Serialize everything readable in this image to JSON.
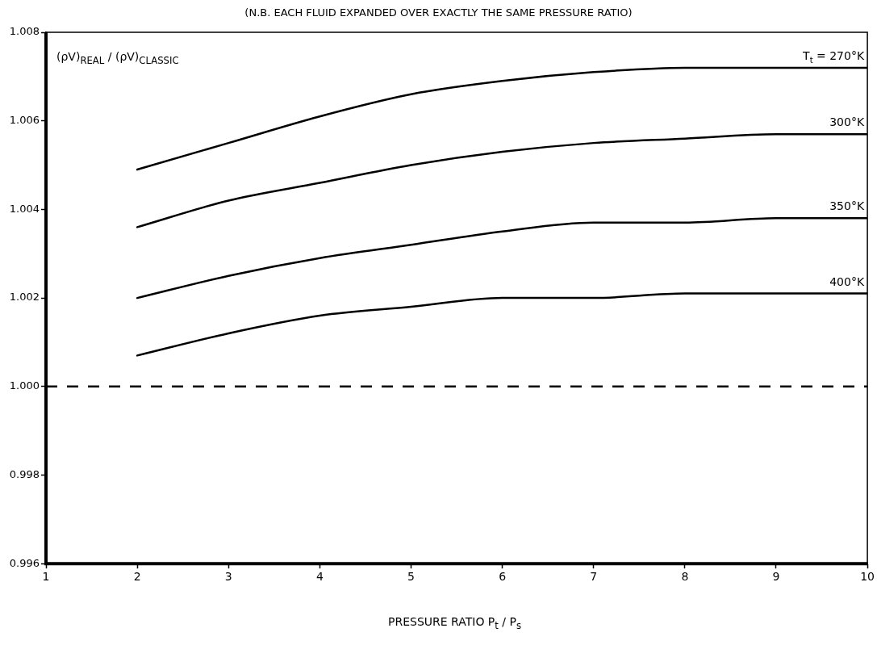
{
  "chart_data": {
    "type": "line",
    "title": "(N.B. EACH FLUID EXPANDED OVER EXACTLY THE SAME PRESSURE RATIO)",
    "xlabel": "PRESSURE RATIO  P$_{t}$ / P$_{s}$",
    "ylabel": "(ρV)$_{REAL}$ / (ρV)$_{CLASSIC}$",
    "x": [
      2,
      3,
      4,
      5,
      6,
      7,
      8,
      9,
      10
    ],
    "series": [
      {
        "name": "T$_{t}$ = 270°K",
        "color": "#000000",
        "values": [
          1.0049,
          1.0055,
          1.0061,
          1.0066,
          1.0069,
          1.0071,
          1.0072,
          1.0072,
          1.0072
        ]
      },
      {
        "name": "300°K",
        "color": "#000000",
        "values": [
          1.0036,
          1.0042,
          1.0046,
          1.005,
          1.0053,
          1.0055,
          1.0056,
          1.0057,
          1.0057
        ]
      },
      {
        "name": "350°K",
        "color": "#000000",
        "values": [
          1.002,
          1.0025,
          1.0029,
          1.0032,
          1.0035,
          1.0037,
          1.0037,
          1.0038,
          1.0038
        ]
      },
      {
        "name": "400°K",
        "color": "#000000",
        "values": [
          1.0007,
          1.0012,
          1.0016,
          1.0018,
          1.002,
          1.002,
          1.0021,
          1.0021,
          1.0021
        ]
      }
    ],
    "xlim": [
      1,
      10
    ],
    "xticks": [
      1,
      2,
      3,
      4,
      5,
      6,
      7,
      8,
      9,
      10
    ],
    "ylim": [
      0.996,
      1.008
    ],
    "yticks": [
      {
        "value": 0.996,
        "label": "0.996"
      },
      {
        "value": 0.998,
        "label": "0.998"
      },
      {
        "value": 1.0,
        "label": "1.000"
      },
      {
        "value": 1.002,
        "label": "1.002"
      },
      {
        "value": 1.004,
        "label": "1.004"
      },
      {
        "value": 1.006,
        "label": "1.006"
      },
      {
        "value": 1.008,
        "label": "1.008"
      }
    ],
    "ref_lines": [
      {
        "axis": "y",
        "value": 1.0,
        "line_style": "dashed",
        "color": "#000000"
      }
    ],
    "line_style": "solid",
    "marker": "none",
    "legend": false
  }
}
